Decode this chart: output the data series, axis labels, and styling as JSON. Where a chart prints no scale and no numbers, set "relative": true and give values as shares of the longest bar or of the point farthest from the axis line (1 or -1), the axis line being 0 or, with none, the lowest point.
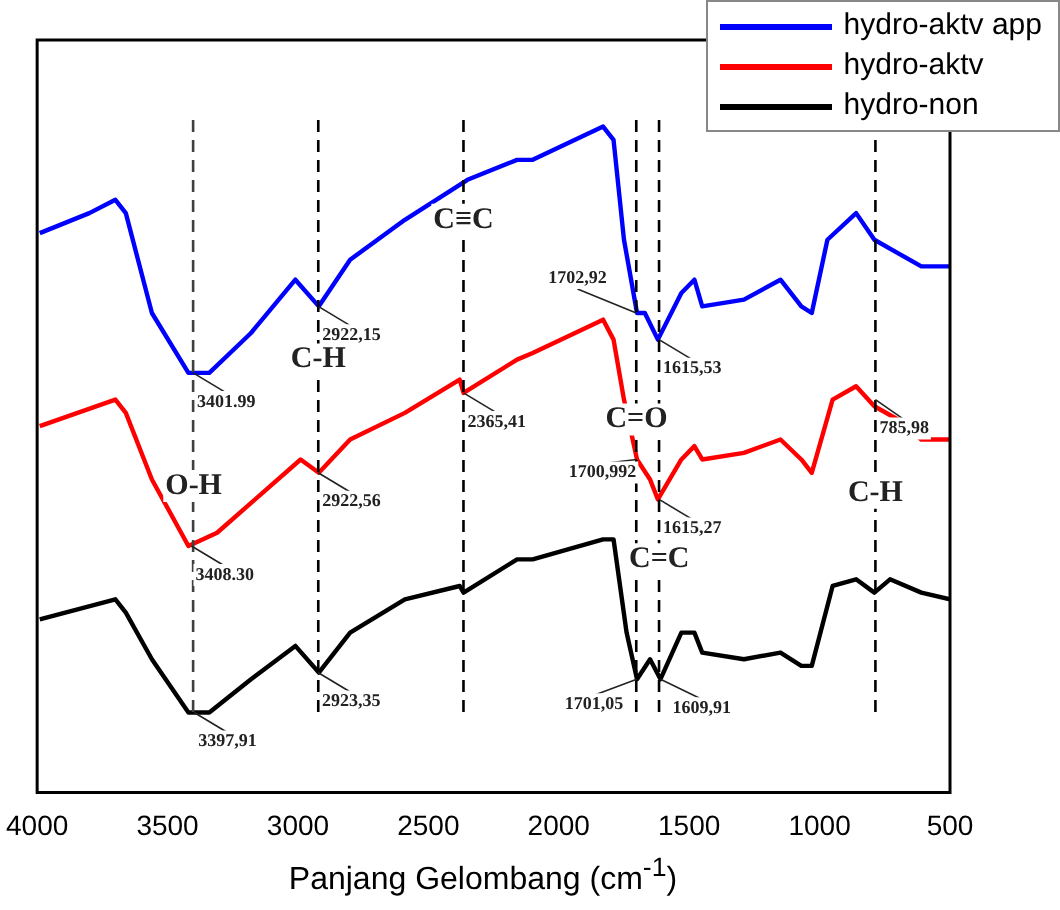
{
  "chart_data": {
    "type": "line",
    "relative": true,
    "xlabel": "Panjang Gelombang (cm$^{-1}$)",
    "xlim": [
      4000,
      500
    ],
    "xticks": [
      4000,
      3500,
      3000,
      2500,
      2000,
      1500,
      1000,
      500
    ],
    "legend": "top right",
    "grid": false,
    "marker": "none",
    "line_style": "solid",
    "series": [
      {
        "name": "hydro-aktv app",
        "color": "#0000ff",
        "x": [
          3990,
          3800,
          3700,
          3660,
          3560,
          3420,
          3340,
          3180,
          3010,
          2920,
          2800,
          2590,
          2350,
          2160,
          2100,
          1830,
          1790,
          1750,
          1700,
          1670,
          1620,
          1530,
          1480,
          1450,
          1290,
          1150,
          1070,
          1030,
          970,
          860,
          790,
          700,
          610,
          500
        ],
        "values": [
          0.84,
          0.87,
          0.89,
          0.87,
          0.72,
          0.63,
          0.63,
          0.69,
          0.77,
          0.73,
          0.8,
          0.86,
          0.92,
          0.95,
          0.95,
          1.0,
          0.98,
          0.83,
          0.72,
          0.72,
          0.68,
          0.75,
          0.77,
          0.73,
          0.74,
          0.77,
          0.73,
          0.72,
          0.83,
          0.87,
          0.83,
          0.81,
          0.79,
          0.79
        ]
      },
      {
        "name": "hydro-aktv",
        "color": "#ff0000",
        "x": [
          3990,
          3700,
          3660,
          3560,
          3420,
          3310,
          2990,
          2920,
          2800,
          2590,
          2380,
          2365,
          2160,
          2100,
          1830,
          1790,
          1750,
          1700,
          1650,
          1620,
          1530,
          1480,
          1450,
          1290,
          1150,
          1070,
          1030,
          950,
          860,
          790,
          700,
          610,
          500
        ],
        "values": [
          0.55,
          0.59,
          0.57,
          0.47,
          0.37,
          0.39,
          0.5,
          0.48,
          0.53,
          0.57,
          0.62,
          0.6,
          0.65,
          0.66,
          0.71,
          0.68,
          0.59,
          0.5,
          0.47,
          0.44,
          0.5,
          0.52,
          0.5,
          0.51,
          0.53,
          0.5,
          0.48,
          0.59,
          0.61,
          0.58,
          0.56,
          0.53,
          0.53
        ]
      },
      {
        "name": "hydro-non",
        "color": "#000000",
        "x": [
          3990,
          3700,
          3660,
          3560,
          3420,
          3340,
          3180,
          3010,
          2920,
          2800,
          2590,
          2380,
          2365,
          2160,
          2100,
          1830,
          1790,
          1740,
          1700,
          1650,
          1610,
          1530,
          1480,
          1450,
          1290,
          1150,
          1070,
          1030,
          950,
          860,
          790,
          730,
          610,
          500
        ],
        "values": [
          0.26,
          0.29,
          0.27,
          0.2,
          0.12,
          0.12,
          0.17,
          0.22,
          0.18,
          0.24,
          0.29,
          0.31,
          0.3,
          0.35,
          0.35,
          0.38,
          0.38,
          0.24,
          0.17,
          0.2,
          0.17,
          0.24,
          0.24,
          0.21,
          0.2,
          0.21,
          0.19,
          0.19,
          0.31,
          0.32,
          0.3,
          0.32,
          0.3,
          0.29
        ]
      }
    ],
    "ref_lines": [
      {
        "axis": "x",
        "value": 3401.99,
        "color": "#404040",
        "line_style": "dashed"
      },
      {
        "axis": "x",
        "value": 2922.15,
        "color": "#000000",
        "line_style": "dashed"
      },
      {
        "axis": "x",
        "value": 2365.41,
        "color": "#000000",
        "line_style": "dashed"
      },
      {
        "axis": "x",
        "value": 1702.92,
        "color": "#000000",
        "line_style": "dashed"
      },
      {
        "axis": "x",
        "value": 1615.53,
        "color": "#000000",
        "line_style": "dashed"
      },
      {
        "axis": "x",
        "value": 785.98,
        "color": "#000000",
        "line_style": "dashed"
      }
    ],
    "annotations": [
      {
        "text": "3401.99",
        "x": 3401.99,
        "y": 0.63
      },
      {
        "text": "2922,15",
        "x": 2922.15,
        "y": 0.73
      },
      {
        "text": "2365,41",
        "x": 2365.41,
        "y": 0.6
      },
      {
        "text": "1702,92",
        "x": 1702.92,
        "y": 0.72
      },
      {
        "text": "1615,53",
        "x": 1615.53,
        "y": 0.68
      },
      {
        "text": "3408.30",
        "x": 3408.3,
        "y": 0.37
      },
      {
        "text": "2922,56",
        "x": 2922.56,
        "y": 0.48
      },
      {
        "text": "1700,992",
        "x": 1700.992,
        "y": 0.5
      },
      {
        "text": "1615,27",
        "x": 1615.27,
        "y": 0.44
      },
      {
        "text": "785,98",
        "x": 785.98,
        "y": 0.59
      },
      {
        "text": "3397,91",
        "x": 3397.91,
        "y": 0.12
      },
      {
        "text": "2923,35",
        "x": 2923.35,
        "y": 0.18
      },
      {
        "text": "1701,05",
        "x": 1701.05,
        "y": 0.17
      },
      {
        "text": "1609,91",
        "x": 1609.91,
        "y": 0.17
      },
      {
        "text": "O-H",
        "x": 3400,
        "y": 0.46
      },
      {
        "text": "C-H",
        "x": 2922,
        "y": 0.65
      },
      {
        "text": "C≡C",
        "x": 2365,
        "y": 0.86
      },
      {
        "text": "C=O",
        "x": 1702,
        "y": 0.56
      },
      {
        "text": "C=C",
        "x": 1615,
        "y": 0.35
      },
      {
        "text": "C-H",
        "x": 786,
        "y": 0.45
      }
    ]
  }
}
